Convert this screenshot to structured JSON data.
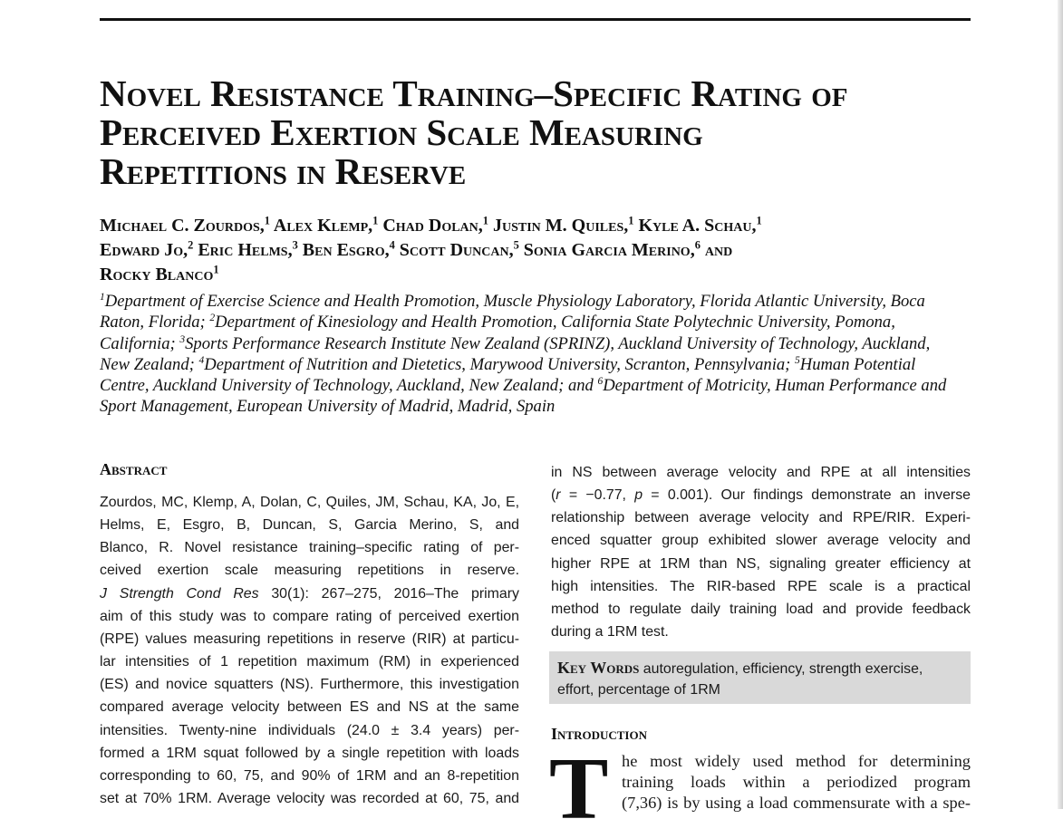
{
  "title": {
    "lines": [
      "Novel Resistance Training–Specific Rating of",
      "Perceived Exertion Scale Measuring",
      "Repetitions in Reserve"
    ]
  },
  "authors": {
    "line1": {
      "a1": "Michael C. Zourdos,",
      "s1": "1",
      "a2": " Alex Klemp,",
      "s2": "1",
      "a3": " Chad Dolan,",
      "s3": "1",
      "a4": " Justin M. Quiles,",
      "s4": "1",
      "a5": " Kyle A. Schau,",
      "s5": "1"
    },
    "line2": {
      "a1": "Edward Jo,",
      "s1": "2",
      "a2": " Eric Helms,",
      "s2": "3",
      "a3": " Ben Esgro,",
      "s3": "4",
      "a4": " Scott Duncan,",
      "s4": "5",
      "a5": " Sonia Garcia Merino,",
      "s5": "6",
      "a6": " and"
    },
    "line3": {
      "a1": "Rocky Blanco",
      "s1": "1"
    }
  },
  "affiliations": {
    "line1": {
      "s1": "1",
      "t1": "Department of Exercise Science and Health Promotion, Muscle Physiology Laboratory, Florida Atlantic University, Boca"
    },
    "line2": {
      "t1": "Raton, Florida; ",
      "s2": "2",
      "t2": "Department of Kinesiology and Health Promotion, California State Polytechnic University, Pomona,"
    },
    "line3": {
      "t1": "California; ",
      "s3": "3",
      "t2": "Sports Performance Research Institute New Zealand (SPRINZ), Auckland University of Technology, Auckland,"
    },
    "line4": {
      "t1": "New Zealand; ",
      "s4": "4",
      "t2": "Department of Nutrition and Dietetics, Marywood University, Scranton, Pennsylvania; ",
      "s5": "5",
      "t3": "Human Potential"
    },
    "line5": {
      "t1": "Centre, Auckland University of Technology, Auckland, New Zealand; and ",
      "s6": "6",
      "t2": "Department of Motricity, Human Performance and"
    },
    "line6": {
      "t1": "Sport Management, European University of Madrid, Madrid, Spain"
    }
  },
  "abstract": {
    "heading": "Abstract",
    "lines": [
      "Zourdos, MC, Klemp, A, Dolan, C, Quiles, JM, Schau, KA, Jo, E,",
      "Helms, E, Esgro, B, Duncan, S, Garcia Merino, S, and",
      "Blanco, R. Novel resistance training–specific rating of per-",
      "ceived exertion scale measuring repetitions in reserve.",
      "J Strength Cond Res 30(1): 267–275, 2016–The primary",
      "aim of this study was to compare rating of perceived exertion",
      "(RPE) values measuring repetitions in reserve (RIR) at particu-",
      "lar intensities of 1 repetition maximum (RM) in experienced",
      "(ES) and novice squatters (NS). Furthermore, this investigation",
      "compared average velocity between ES and NS at the same",
      "intensities. Twenty-nine individuals (24.0 ± 3.4 years) per-",
      "formed a 1RM squat followed by a single repetition with loads",
      "corresponding to 60, 75, and 90% of 1RM and an 8-repetition",
      "set at 70% 1RM. Average velocity was recorded at 60, 75, and"
    ],
    "journal_italic": "J Strength Cond Res",
    "journal_rest": " 30(1): 267–275, 2016–The primary",
    "right_lines": [
      "in NS between average velocity and RPE at all intensities",
      "(r = −0.77, p = 0.001). Our findings demonstrate an inverse",
      "relationship between average velocity and RPE/RIR. Experi-",
      "enced squatter group exhibited slower average velocity and",
      "higher RPE at 1RM than NS, signaling greater efficiency at",
      "high intensities. The RIR-based RPE scale is a practical",
      "method to regulate daily training load and provide feedback",
      "during a 1RM test."
    ],
    "stat_line": {
      "pre": "(",
      "r": "r",
      "mid": " = −0.77, ",
      "p": "p",
      "post": " = 0.001). Our findings demonstrate an inverse"
    }
  },
  "keywords": {
    "label": "Key Words",
    "line1_text": " autoregulation, efficiency, strength exercise,",
    "line2_text": "effort, percentage of 1RM"
  },
  "introduction": {
    "heading": "Introduction",
    "dropcap": "T",
    "lines": [
      "he most widely used method for determining",
      "training loads within a periodized program",
      "(7,36) is by using a load commensurate with a spe-"
    ]
  }
}
